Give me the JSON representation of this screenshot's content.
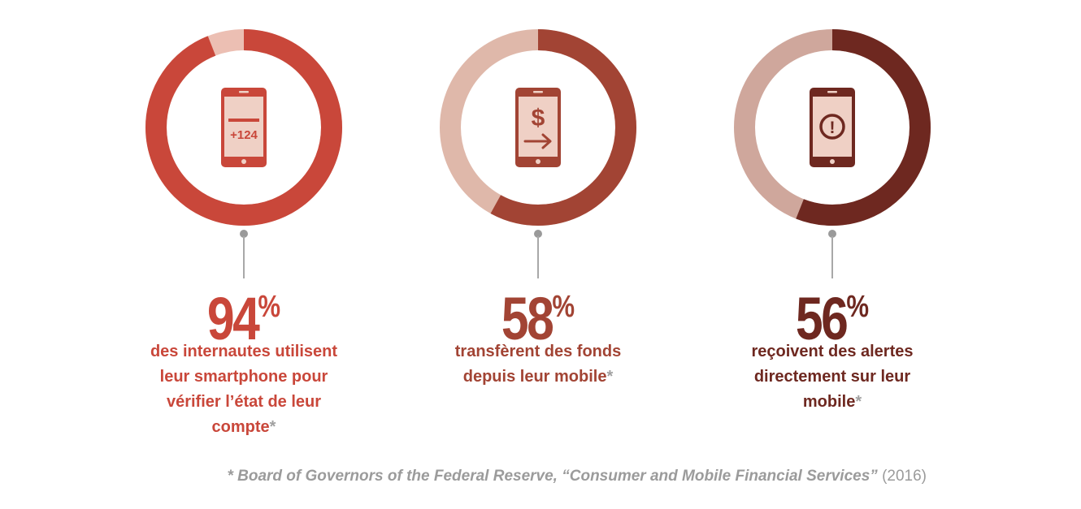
{
  "chart_data": {
    "type": "donut",
    "items": [
      {
        "value": 94,
        "value_label": "94",
        "unit": "%",
        "description": "des internautes utilisent leur smartphone pour vérifier l’état de leur compte",
        "desc_lines": [
          "des internautes utilisent",
          "leur smartphone pour",
          "vérifier l’état de leur",
          "compte"
        ],
        "footnote_mark": "*",
        "icon": "phone-balance-icon",
        "icon_text": "+124",
        "color": "#c9473a",
        "track_color": "#ecbfb3"
      },
      {
        "value": 58,
        "value_label": "58",
        "unit": "%",
        "description": "transfèrent des fonds depuis leur mobile",
        "desc_lines": [
          "transfèrent des fonds",
          "depuis leur mobile"
        ],
        "footnote_mark": "*",
        "icon": "phone-dollar-transfer-icon",
        "icon_text": "$",
        "color": "#a24434",
        "track_color": "#dfb8aa"
      },
      {
        "value": 56,
        "value_label": "56",
        "unit": "%",
        "description": "reçoivent des alertes directement sur leur mobile",
        "desc_lines": [
          "reçoivent des alertes",
          "directement sur leur",
          "mobile"
        ],
        "footnote_mark": "*",
        "icon": "phone-alert-icon",
        "icon_text": "!",
        "color": "#6e2820",
        "track_color": "#cfa79c"
      }
    ]
  },
  "source": {
    "text": "* Board of Governors of the Federal Reserve, “Consumer and Mobile Financial Services”",
    "year": "(2016)"
  }
}
